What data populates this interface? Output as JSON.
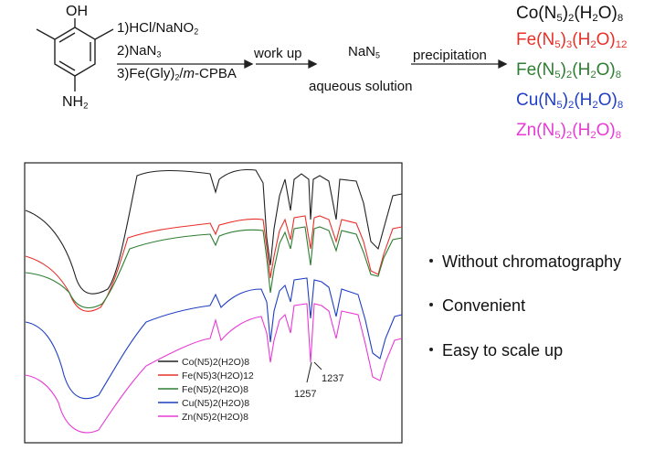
{
  "scheme": {
    "reactant": {
      "oh": "OH",
      "nh2": "NH"
    },
    "conditions": [
      "1)HCl/NaNO",
      "2)NaN",
      "3)Fe(Gly)",
      "-CPBA"
    ],
    "cond_meta": "m",
    "workup": "work up",
    "intermediate": "NaN",
    "intermediate_sub": "5",
    "aqueous": "aqueous solution",
    "precipitation": "precipitation",
    "products": [
      {
        "base": "Co(N",
        "n": "5",
        "m": "2",
        "h2o": "(H",
        "o": "O)",
        "w": "8",
        "color": "#111111"
      },
      {
        "base": "Fe(N",
        "n": "5",
        "m": "3",
        "h2o": "(H",
        "o": "O)",
        "w": "12",
        "color": "#e8302a"
      },
      {
        "base": "Fe(N",
        "n": "5",
        "m": "2",
        "h2o": "(H",
        "o": "O)",
        "w": "8",
        "color": "#2e7d32"
      },
      {
        "base": "Cu(N",
        "n": "5",
        "m": "2",
        "h2o": "(H",
        "o": "O)",
        "w": "8",
        "color": "#1f3fc4"
      },
      {
        "base": "Zn(N",
        "n": "5",
        "m": "2",
        "h2o": "(H",
        "o": "O)",
        "w": "8",
        "color": "#e83ad6"
      }
    ]
  },
  "spectrum": {
    "annot_1257": "1257",
    "annot_1237": "1237",
    "legend": [
      {
        "label": "Co(N5)2(H2O)8",
        "color": "#222222"
      },
      {
        "label": "Fe(N5)3(H2O)12",
        "color": "#e8302a"
      },
      {
        "label": "Fe(N5)2(H2O)8",
        "color": "#2e7d32"
      },
      {
        "label": "Cu(N5)2(H2O)8",
        "color": "#1f3fc4"
      },
      {
        "label": "Zn(N5)2(H2O)8",
        "color": "#e83ad6"
      }
    ]
  },
  "bullets": [
    "Without chromatography",
    "Convenient",
    "Easy to scale up"
  ]
}
